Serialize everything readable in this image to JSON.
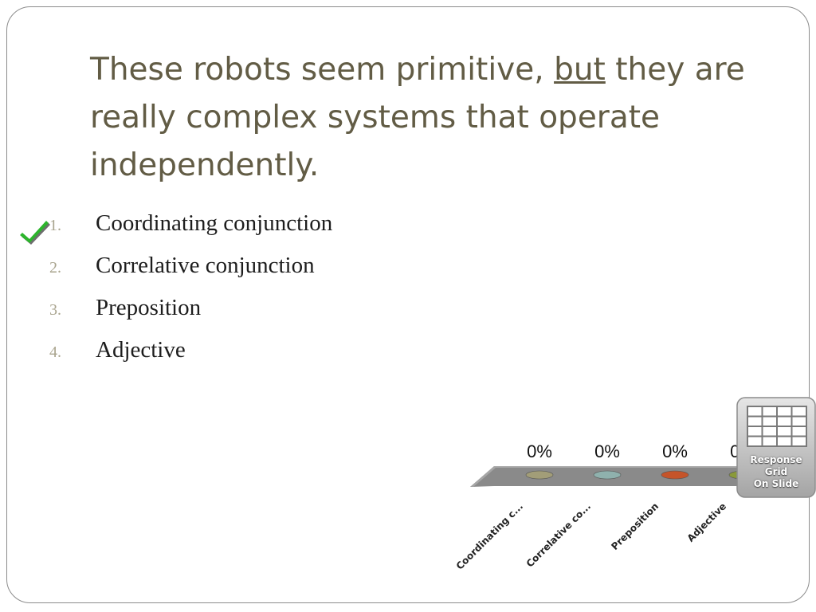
{
  "question": {
    "title_before": "These robots seem primitive, ",
    "title_underlined": "but",
    "title_after": " they are really complex systems that operate independently."
  },
  "answers": [
    {
      "number": "1.",
      "text": "Coordinating conjunction",
      "correct": true
    },
    {
      "number": "2.",
      "text": "Correlative conjunction",
      "correct": false
    },
    {
      "number": "3.",
      "text": "Preposition",
      "correct": false
    },
    {
      "number": "4.",
      "text": "Adjective",
      "correct": false
    }
  ],
  "chart_data": {
    "type": "bar",
    "categories": [
      "Coordinating c...",
      "Correlative co...",
      "Preposition",
      "Adjective"
    ],
    "values": [
      0,
      0,
      0,
      0
    ],
    "value_labels": [
      "0%",
      "0%",
      "0%",
      "0%"
    ],
    "unit": "%",
    "colors": [
      "#a29d78",
      "#8fb1ad",
      "#c5542a",
      "#8a9a3a"
    ],
    "platform_color": "#8a8a8a"
  },
  "badge": {
    "line1": "Response",
    "line2": "Grid",
    "line3": "On Slide"
  },
  "colors": {
    "title": "#625c45",
    "checkmark": "#2cb52c"
  }
}
